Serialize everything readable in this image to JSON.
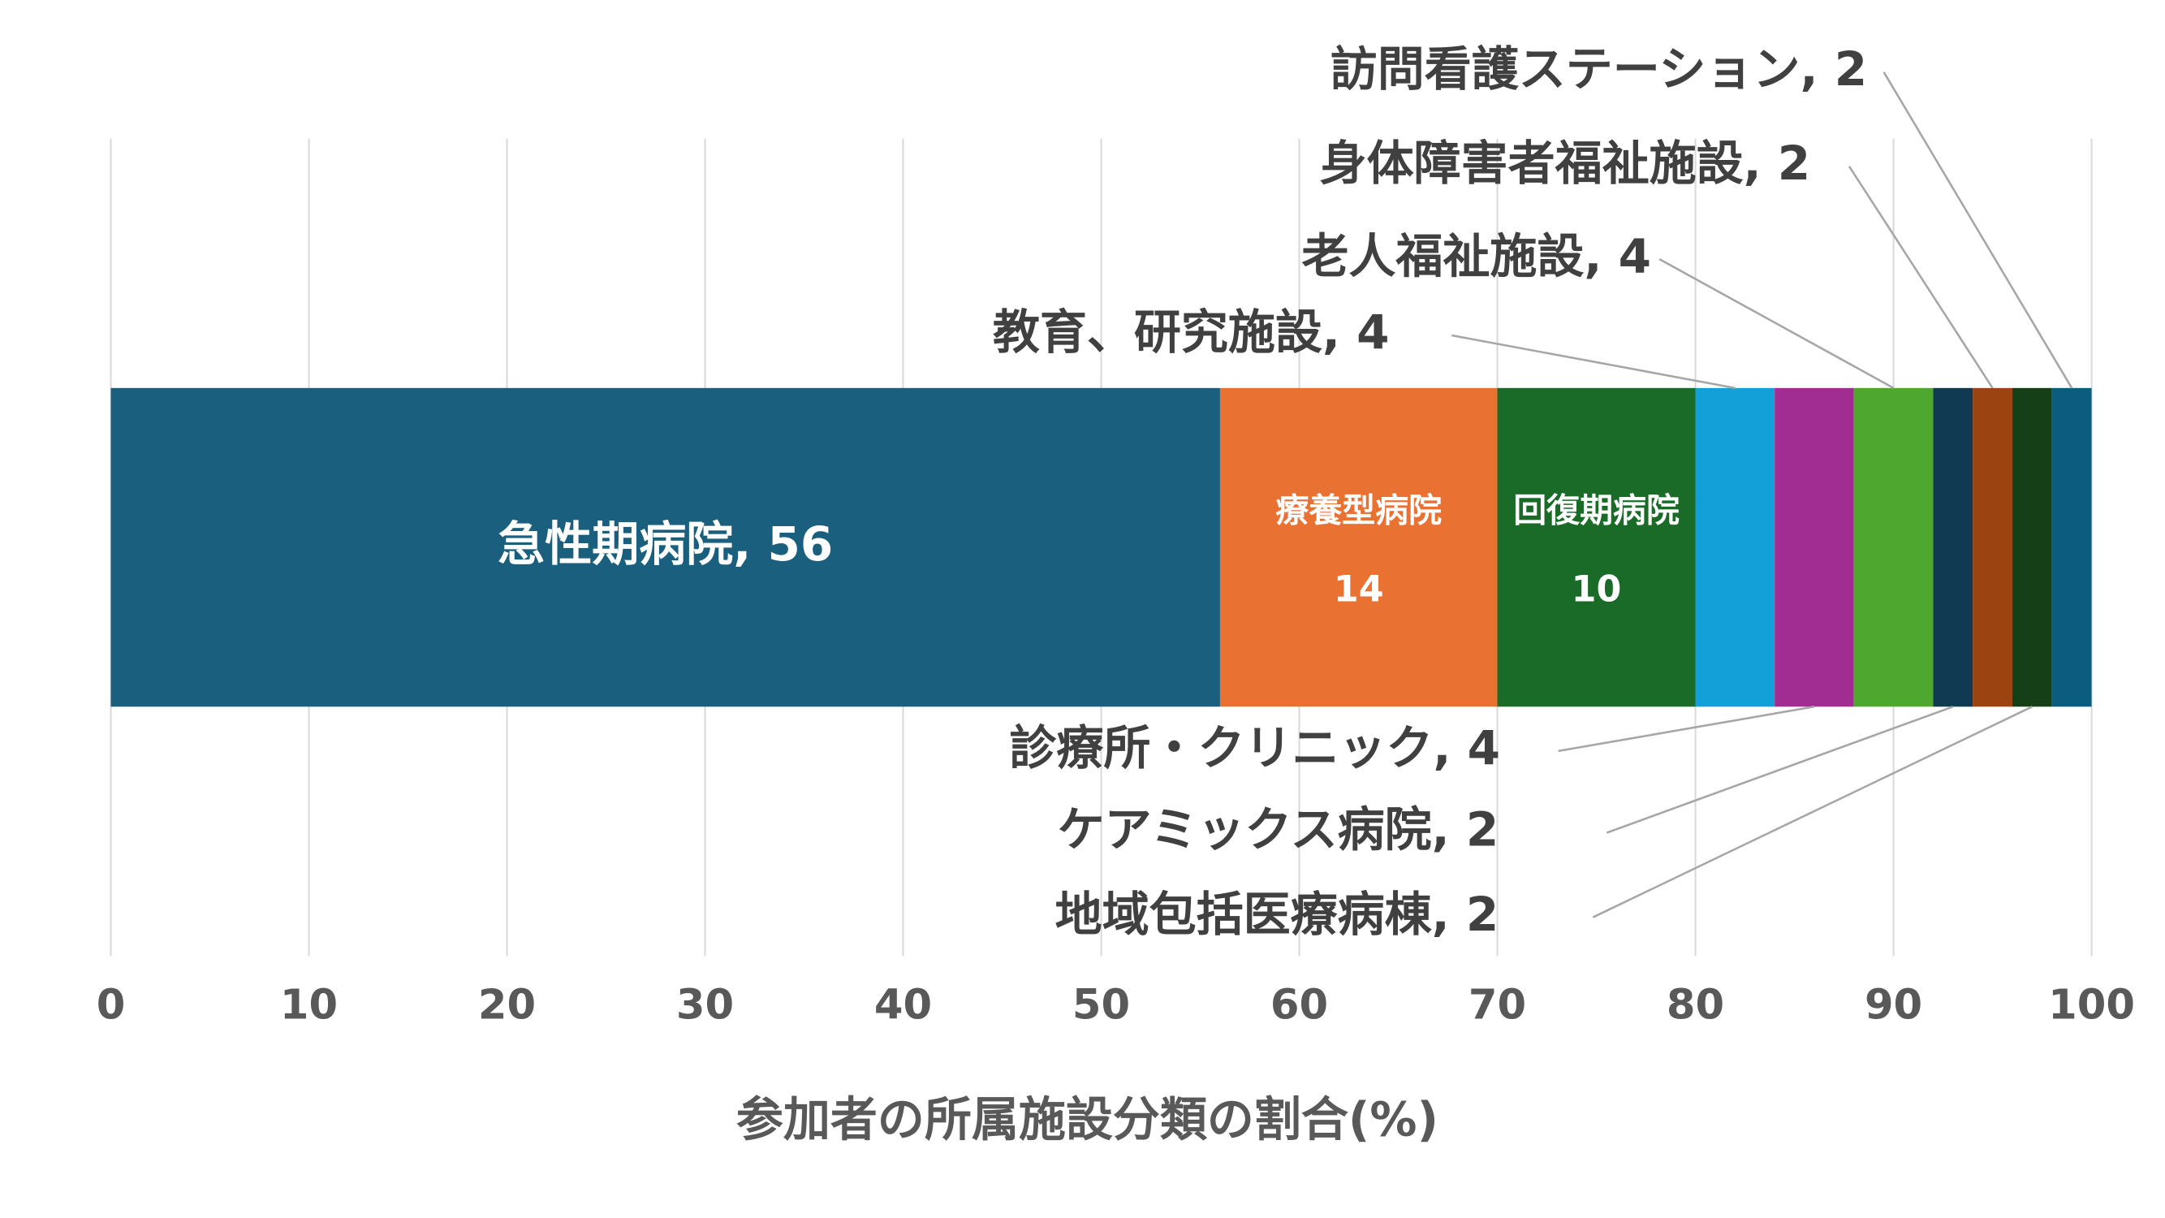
{
  "chart_data": {
    "type": "stacked_bar_horizontal",
    "x_label": "参加者の所属施設分類の割合(%)",
    "xlim": [
      0,
      100
    ],
    "xticks": [
      0,
      10,
      20,
      30,
      40,
      50,
      60,
      70,
      80,
      90,
      100
    ],
    "grid": true,
    "series": [
      {
        "name": "急性期病院",
        "color": "#1a5f7e",
        "values": [
          56
        ],
        "value_labels": [
          "急性期病院, 56"
        ]
      },
      {
        "name": "療養型病院",
        "color": "#e97132",
        "values": [
          14
        ]
      },
      {
        "name": "回復期病院",
        "color": "#1b6b28",
        "values": [
          10
        ]
      },
      {
        "name": "教育、研究施設",
        "color": "#139fd8",
        "values": [
          4
        ],
        "value_labels": [
          "教育、研究施設, 4"
        ]
      },
      {
        "name": "診療所・クリニック",
        "color": "#a12d92",
        "values": [
          4
        ],
        "value_labels": [
          "診療所・クリニック, 4"
        ]
      },
      {
        "name": "老人福祉施設",
        "color": "#4ea72e",
        "values": [
          4
        ],
        "value_labels": [
          "老人福祉施設, 4"
        ]
      },
      {
        "name": "ケアミックス病院",
        "color": "#0f3a52",
        "values": [
          2
        ],
        "value_labels": [
          "ケアミックス病院, 2"
        ]
      },
      {
        "name": "身体障害者福祉施設",
        "color": "#9c4312",
        "values": [
          2
        ],
        "value_labels": [
          "身体障害者福祉施設, 2"
        ]
      },
      {
        "name": "地域包括医療病棟",
        "color": "#143f17",
        "values": [
          2
        ],
        "value_labels": [
          "地域包括医療病棟, 2"
        ]
      },
      {
        "name": "訪問看護ステーション",
        "color": "#0c5c80",
        "values": [
          2
        ],
        "value_labels": [
          "訪問看護ステーション, 2"
        ]
      }
    ]
  }
}
